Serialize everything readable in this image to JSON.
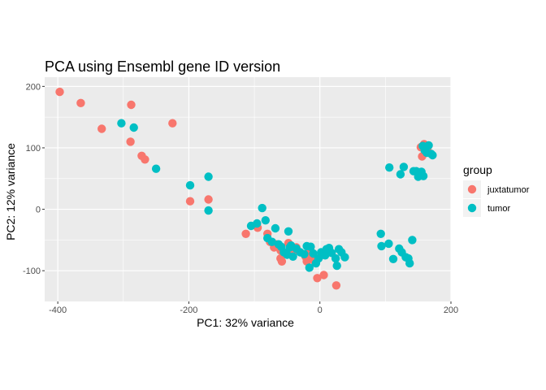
{
  "chart_data": {
    "type": "scatter",
    "title": "PCA using Ensembl gene ID version",
    "xlabel": "PC1: 32% variance",
    "ylabel": "PC2: 12% variance",
    "xlim": [
      -420,
      200
    ],
    "ylim": [
      -150,
      215
    ],
    "x_ticks": [
      -400,
      -200,
      0,
      200
    ],
    "y_ticks": [
      -100,
      0,
      100,
      200
    ],
    "grid": true,
    "legend": {
      "title": "group",
      "position": "right"
    },
    "series": [
      {
        "name": "juxtatumor",
        "color": "#F8766D",
        "points": [
          [
            -397,
            191
          ],
          [
            -365,
            173
          ],
          [
            -333,
            131
          ],
          [
            -288,
            170
          ],
          [
            -289,
            110
          ],
          [
            -272,
            87
          ],
          [
            -267,
            81
          ],
          [
            -225,
            140
          ],
          [
            -198,
            13
          ],
          [
            -170,
            16
          ],
          [
            -113,
            -40
          ],
          [
            -95,
            -30
          ],
          [
            -80,
            -40
          ],
          [
            -76,
            -53
          ],
          [
            -70,
            -62
          ],
          [
            -66,
            -57
          ],
          [
            -60,
            -67
          ],
          [
            -60,
            -80
          ],
          [
            -58,
            -85
          ],
          [
            -48,
            -55
          ],
          [
            -44,
            -72
          ],
          [
            -40,
            -68
          ],
          [
            -36,
            -62
          ],
          [
            -22,
            -77
          ],
          [
            -20,
            -85
          ],
          [
            -15,
            -65
          ],
          [
            -13,
            -70
          ],
          [
            -10,
            -80
          ],
          [
            -8,
            -85
          ],
          [
            -4,
            -112
          ],
          [
            6,
            -107
          ],
          [
            25,
            -124
          ],
          [
            154,
            101
          ],
          [
            156,
            86
          ],
          [
            159,
            106
          ],
          [
            162,
            101
          ],
          [
            164,
            98
          ]
        ]
      },
      {
        "name": "tumor",
        "color": "#00BFC4",
        "points": [
          [
            -303,
            140
          ],
          [
            -284,
            133
          ],
          [
            -250,
            66
          ],
          [
            -198,
            39
          ],
          [
            -170,
            53
          ],
          [
            -170,
            -2
          ],
          [
            -105,
            -27
          ],
          [
            -96,
            -23
          ],
          [
            -88,
            2
          ],
          [
            -83,
            -18
          ],
          [
            -80,
            -47
          ],
          [
            -73,
            -53
          ],
          [
            -68,
            -31
          ],
          [
            -63,
            -57
          ],
          [
            -59,
            -61
          ],
          [
            -55,
            -70
          ],
          [
            -50,
            -74
          ],
          [
            -48,
            -36
          ],
          [
            -46,
            -62
          ],
          [
            -44,
            -59
          ],
          [
            -41,
            -77
          ],
          [
            -36,
            -64
          ],
          [
            -30,
            -70
          ],
          [
            -24,
            -73
          ],
          [
            -20,
            -60
          ],
          [
            -16,
            -95
          ],
          [
            -14,
            -61
          ],
          [
            -10,
            -72
          ],
          [
            -6,
            -88
          ],
          [
            -2,
            -80
          ],
          [
            2,
            -70
          ],
          [
            5,
            -74
          ],
          [
            8,
            -75
          ],
          [
            10,
            -65
          ],
          [
            14,
            -63
          ],
          [
            18,
            -71
          ],
          [
            24,
            -80
          ],
          [
            26,
            -92
          ],
          [
            29,
            -65
          ],
          [
            33,
            -70
          ],
          [
            38,
            -78
          ],
          [
            93,
            -40
          ],
          [
            94,
            -60
          ],
          [
            105,
            -56
          ],
          [
            106,
            68
          ],
          [
            112,
            -81
          ],
          [
            121,
            -64
          ],
          [
            123,
            57
          ],
          [
            125,
            -70
          ],
          [
            128,
            69
          ],
          [
            131,
            -78
          ],
          [
            135,
            -80
          ],
          [
            137,
            -88
          ],
          [
            141,
            -50
          ],
          [
            143,
            62
          ],
          [
            147,
            62
          ],
          [
            150,
            53
          ],
          [
            155,
            61
          ],
          [
            157,
            103
          ],
          [
            158,
            54
          ],
          [
            160,
            96
          ],
          [
            163,
            92
          ],
          [
            166,
            104
          ],
          [
            170,
            90
          ],
          [
            172,
            88
          ]
        ]
      }
    ]
  }
}
